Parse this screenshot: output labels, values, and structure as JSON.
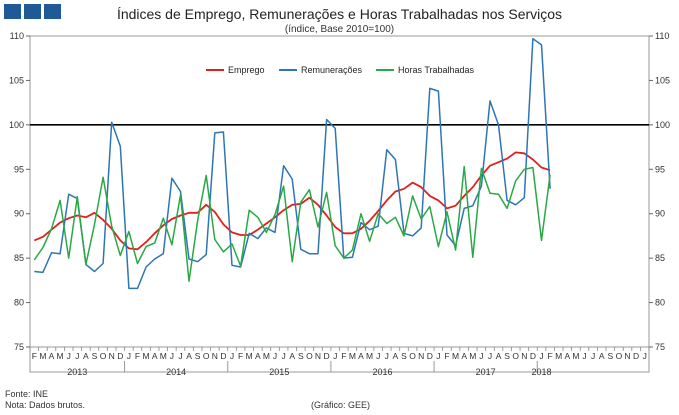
{
  "header": {
    "title": "Índices de Emprego, Remunerações e Horas Trabalhadas nos Serviços",
    "subtitle": "(índice, Base 2010=100)"
  },
  "footer": {
    "source": "Fonte: INE",
    "note": "Nota: Dados brutos.",
    "credit": "(Gráfico: GEE)"
  },
  "colors": {
    "emprego": "#e0201b",
    "remuneracoes": "#2e75b6",
    "horas": "#2aa845",
    "reference": "#000000",
    "brand": "#1f5a96"
  },
  "chart_data": {
    "type": "line",
    "title": "Índices de Emprego, Remunerações e Horas Trabalhadas nos Serviços",
    "subtitle": "(índice, Base 2010=100)",
    "ylim": [
      75,
      110
    ],
    "yticks": [
      75,
      80,
      85,
      90,
      95,
      100,
      105,
      110
    ],
    "reference_line": 100,
    "month_labels": [
      "F",
      "M",
      "A",
      "M",
      "J",
      "J",
      "A",
      "S",
      "O",
      "N",
      "D",
      "J",
      "F",
      "M",
      "A",
      "M",
      "J",
      "J",
      "A",
      "S",
      "O",
      "N",
      "D",
      "J",
      "F",
      "M",
      "A",
      "M",
      "J",
      "J",
      "A",
      "S",
      "O",
      "N",
      "D",
      "J",
      "F",
      "M",
      "A",
      "M",
      "J",
      "J",
      "A",
      "S",
      "O",
      "N",
      "D",
      "J",
      "F",
      "M",
      "A",
      "M",
      "J",
      "J",
      "A",
      "S",
      "O",
      "N",
      "D",
      "J",
      "F",
      "M",
      "A",
      "M",
      "J",
      "J",
      "A",
      "S",
      "O",
      "N",
      "D",
      "J"
    ],
    "year_labels": [
      {
        "label": "2013",
        "start": 0,
        "end": 10
      },
      {
        "label": "2014",
        "start": 11,
        "end": 22
      },
      {
        "label": "2015",
        "start": 23,
        "end": 34
      },
      {
        "label": "2016",
        "start": 35,
        "end": 46
      },
      {
        "label": "2017",
        "start": 47,
        "end": 58
      },
      {
        "label": "2018",
        "start": 59,
        "end": 59
      }
    ],
    "series": [
      {
        "name": "Emprego",
        "values": [
          87.0,
          87.4,
          88.2,
          89.0,
          89.5,
          89.8,
          89.6,
          90.1,
          89.3,
          88.3,
          87.0,
          86.1,
          86.0,
          86.8,
          87.8,
          88.7,
          89.4,
          89.8,
          90.1,
          90.1,
          91.0,
          90.2,
          88.8,
          87.9,
          87.6,
          87.6,
          88.2,
          88.9,
          89.6,
          90.4,
          91.0,
          91.1,
          91.8,
          91.0,
          89.8,
          88.5,
          87.8,
          87.8,
          88.3,
          89.2,
          90.3,
          91.5,
          92.5,
          92.8,
          93.5,
          93.0,
          92.0,
          91.5,
          90.6,
          90.9,
          92.0,
          93.0,
          94.3,
          95.4,
          95.8,
          96.2,
          96.9,
          96.8,
          96.1,
          95.2,
          94.9
        ]
      },
      {
        "name": "Remunerações",
        "values": [
          83.5,
          83.4,
          85.6,
          85.5,
          92.2,
          91.7,
          84.3,
          83.5,
          84.4,
          100.3,
          97.6,
          81.6,
          81.6,
          84.0,
          84.9,
          85.5,
          94.0,
          92.5,
          84.9,
          84.6,
          85.4,
          99.1,
          99.2,
          84.2,
          84.0,
          87.8,
          87.2,
          88.4,
          87.9,
          95.4,
          93.9,
          86.0,
          85.5,
          85.5,
          100.6,
          99.6,
          85.0,
          85.1,
          89.0,
          88.2,
          88.6,
          97.2,
          96.1,
          87.8,
          87.5,
          88.4,
          104.1,
          103.8,
          87.6,
          86.4,
          90.6,
          90.9,
          93.1,
          102.7,
          100.0,
          91.5,
          91.0,
          91.8,
          109.7,
          109.0,
          92.8
        ]
      },
      {
        "name": "Horas Trabalhadas",
        "values": [
          84.8,
          86.2,
          88.3,
          91.5,
          85.0,
          91.9,
          84.3,
          88.8,
          94.1,
          88.6,
          85.3,
          88.0,
          84.4,
          86.3,
          86.7,
          89.5,
          86.5,
          92.1,
          82.4,
          89.2,
          94.3,
          87.1,
          85.7,
          86.6,
          84.1,
          90.4,
          89.6,
          87.9,
          89.9,
          93.1,
          84.6,
          91.3,
          92.7,
          88.5,
          92.4,
          86.4,
          85.0,
          85.9,
          90.0,
          86.9,
          90.0,
          88.9,
          89.6,
          87.5,
          92.0,
          89.4,
          90.8,
          86.3,
          90.2,
          85.9,
          95.3,
          85.1,
          95.1,
          92.3,
          92.2,
          90.6,
          93.7,
          95.0,
          95.2,
          87.0,
          94.4
        ]
      }
    ]
  }
}
